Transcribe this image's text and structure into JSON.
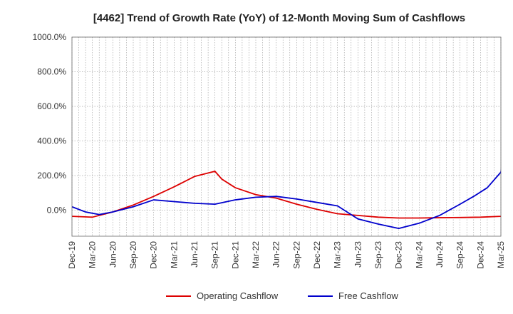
{
  "chart_data": {
    "type": "line",
    "title": "[4462]  Trend of Growth Rate (YoY) of 12-Month Moving Sum of Cashflows",
    "xlabel": "",
    "ylabel": "",
    "ylim": [
      -150,
      1000
    ],
    "y_ticks": [
      0,
      200,
      400,
      600,
      800,
      1000
    ],
    "y_tick_labels": [
      "0.0%",
      "200.0%",
      "400.0%",
      "600.0%",
      "800.0%",
      "1000.0%"
    ],
    "x_tick_labels": [
      "Dec-19",
      "Mar-20",
      "Jun-20",
      "Sep-20",
      "Dec-20",
      "Mar-21",
      "Jun-21",
      "Sep-21",
      "Dec-21",
      "Mar-22",
      "Jun-22",
      "Sep-22",
      "Dec-22",
      "Mar-23",
      "Jun-23",
      "Sep-23",
      "Dec-23",
      "Mar-24",
      "Jun-24",
      "Sep-24",
      "Dec-24",
      "Mar-25"
    ],
    "grid": true,
    "legend_position": "bottom",
    "series": [
      {
        "name": "Operating Cashflow",
        "color": "#dd0000",
        "points": [
          [
            0,
            -35
          ],
          [
            3,
            -40
          ],
          [
            6,
            -10
          ],
          [
            9,
            30
          ],
          [
            12,
            80
          ],
          [
            15,
            135
          ],
          [
            18,
            195
          ],
          [
            21,
            225
          ],
          [
            22,
            180
          ],
          [
            24,
            130
          ],
          [
            27,
            90
          ],
          [
            30,
            70
          ],
          [
            33,
            35
          ],
          [
            36,
            5
          ],
          [
            39,
            -20
          ],
          [
            42,
            -30
          ],
          [
            45,
            -40
          ],
          [
            48,
            -45
          ],
          [
            51,
            -45
          ],
          [
            54,
            -43
          ],
          [
            57,
            -42
          ],
          [
            60,
            -40
          ],
          [
            63,
            -35
          ],
          [
            66,
            -25
          ],
          [
            69,
            10
          ],
          [
            72,
            50
          ],
          [
            75,
            95
          ]
        ]
      },
      {
        "name": "Free Cashflow",
        "color": "#0000cc",
        "points": [
          [
            0,
            20
          ],
          [
            2,
            -10
          ],
          [
            4,
            -25
          ],
          [
            6,
            -10
          ],
          [
            9,
            20
          ],
          [
            12,
            60
          ],
          [
            15,
            50
          ],
          [
            18,
            40
          ],
          [
            21,
            35
          ],
          [
            24,
            60
          ],
          [
            27,
            75
          ],
          [
            30,
            80
          ],
          [
            33,
            65
          ],
          [
            36,
            45
          ],
          [
            39,
            25
          ],
          [
            42,
            -50
          ],
          [
            45,
            -80
          ],
          [
            48,
            -105
          ],
          [
            51,
            -75
          ],
          [
            54,
            -30
          ],
          [
            57,
            35
          ],
          [
            59,
            80
          ],
          [
            61,
            130
          ],
          [
            63,
            220
          ],
          [
            64,
            460
          ],
          [
            65,
            1150
          ],
          [
            68,
            1150
          ],
          [
            69,
            960
          ],
          [
            70,
            660
          ],
          [
            71,
            260
          ],
          [
            73,
            110
          ],
          [
            75,
            40
          ],
          [
            77,
            10
          ],
          [
            78,
            -5
          ]
        ]
      }
    ]
  }
}
